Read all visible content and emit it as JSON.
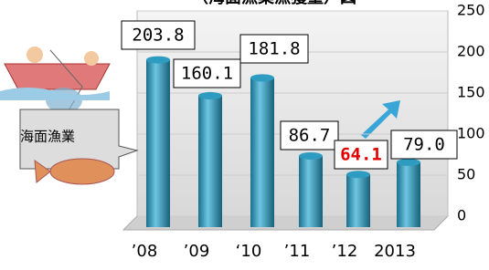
{
  "chart_data": {
    "type": "bar",
    "title": "（海面漁業漁獲量）図",
    "annotation": "海面漁業",
    "categories": [
      "’08",
      "’09",
      "‘10",
      "’11",
      "’12",
      "2013"
    ],
    "values": [
      203.8,
      160.1,
      181.8,
      86.7,
      64.1,
      79.0
    ],
    "value_labels": [
      "203.8",
      "160.1",
      "181.8",
      "86.7",
      "64.1",
      "79.0"
    ],
    "value_label_colors": [
      "#000000",
      "#000000",
      "#000000",
      "#000000",
      "#e00000",
      "#000000"
    ],
    "color": "#2e9cc0",
    "ylim": [
      0,
      250
    ],
    "yticks": [
      0,
      50,
      100,
      150,
      200,
      250
    ],
    "grid": true
  }
}
